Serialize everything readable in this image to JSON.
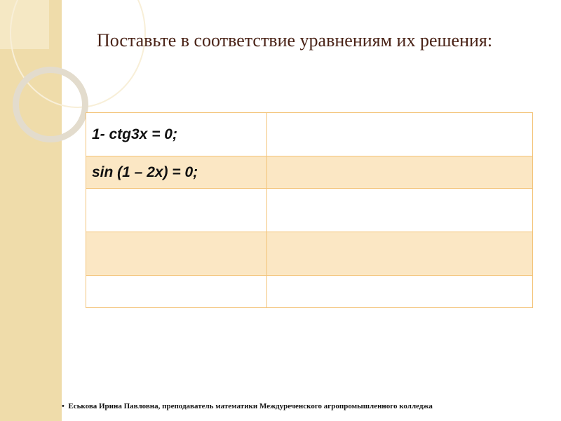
{
  "title": "Поставьте в соответствие уравнениям их решения:",
  "table": {
    "rows": [
      [
        "1- ctg3x = 0;",
        ""
      ],
      [
        "sin (1 – 2x) = 0;",
        ""
      ],
      [
        "",
        ""
      ],
      [
        "",
        ""
      ],
      [
        "",
        ""
      ]
    ]
  },
  "footer": "Еськова Ирина Павловна, преподаватель математики Междуреченского агропромышленного колледжа",
  "colors": {
    "sidebar": "#efdcaa",
    "title": "#4a2317",
    "border": "#f3c47a",
    "row_band": "#fbe7c4"
  }
}
